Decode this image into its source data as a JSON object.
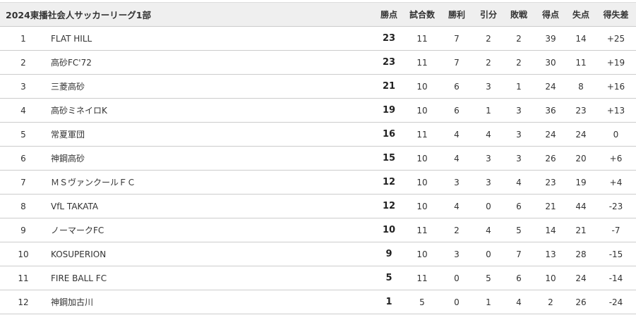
{
  "table": {
    "title": "2024東播社会人サッカーリーグ1部",
    "headers": [
      "勝点",
      "試合数",
      "勝利",
      "引分",
      "敗戦",
      "得点",
      "失点",
      "得失差"
    ],
    "rows": [
      {
        "rank": "1",
        "team": "FLAT HILL",
        "pts": "23",
        "played": "11",
        "won": "7",
        "drawn": "2",
        "lost": "2",
        "gf": "39",
        "ga": "14",
        "gd": "+25"
      },
      {
        "rank": "2",
        "team": "高砂FC'72",
        "pts": "23",
        "played": "11",
        "won": "7",
        "drawn": "2",
        "lost": "2",
        "gf": "30",
        "ga": "11",
        "gd": "+19"
      },
      {
        "rank": "3",
        "team": "三菱高砂",
        "pts": "21",
        "played": "10",
        "won": "6",
        "drawn": "3",
        "lost": "1",
        "gf": "24",
        "ga": "8",
        "gd": "+16"
      },
      {
        "rank": "4",
        "team": "高砂ミネイロK",
        "pts": "19",
        "played": "10",
        "won": "6",
        "drawn": "1",
        "lost": "3",
        "gf": "36",
        "ga": "23",
        "gd": "+13"
      },
      {
        "rank": "5",
        "team": "常夏軍団",
        "pts": "16",
        "played": "11",
        "won": "4",
        "drawn": "4",
        "lost": "3",
        "gf": "24",
        "ga": "24",
        "gd": "0"
      },
      {
        "rank": "6",
        "team": "神鋼高砂",
        "pts": "15",
        "played": "10",
        "won": "4",
        "drawn": "3",
        "lost": "3",
        "gf": "26",
        "ga": "20",
        "gd": "+6"
      },
      {
        "rank": "7",
        "team": "ＭＳヴァンクールＦＣ",
        "pts": "12",
        "played": "10",
        "won": "3",
        "drawn": "3",
        "lost": "4",
        "gf": "23",
        "ga": "19",
        "gd": "+4"
      },
      {
        "rank": "8",
        "team": "VfL TAKATA",
        "pts": "12",
        "played": "10",
        "won": "4",
        "drawn": "0",
        "lost": "6",
        "gf": "21",
        "ga": "44",
        "gd": "-23"
      },
      {
        "rank": "9",
        "team": "ノーマークFC",
        "pts": "10",
        "played": "11",
        "won": "2",
        "drawn": "4",
        "lost": "5",
        "gf": "14",
        "ga": "21",
        "gd": "-7"
      },
      {
        "rank": "10",
        "team": "KOSUPERION",
        "pts": "9",
        "played": "10",
        "won": "3",
        "drawn": "0",
        "lost": "7",
        "gf": "13",
        "ga": "28",
        "gd": "-15"
      },
      {
        "rank": "11",
        "team": "FIRE BALL FC",
        "pts": "5",
        "played": "11",
        "won": "0",
        "drawn": "5",
        "lost": "6",
        "gf": "10",
        "ga": "24",
        "gd": "-14"
      },
      {
        "rank": "12",
        "team": "神鋼加古川",
        "pts": "1",
        "played": "5",
        "won": "0",
        "drawn": "1",
        "lost": "4",
        "gf": "2",
        "ga": "26",
        "gd": "-24"
      }
    ]
  }
}
